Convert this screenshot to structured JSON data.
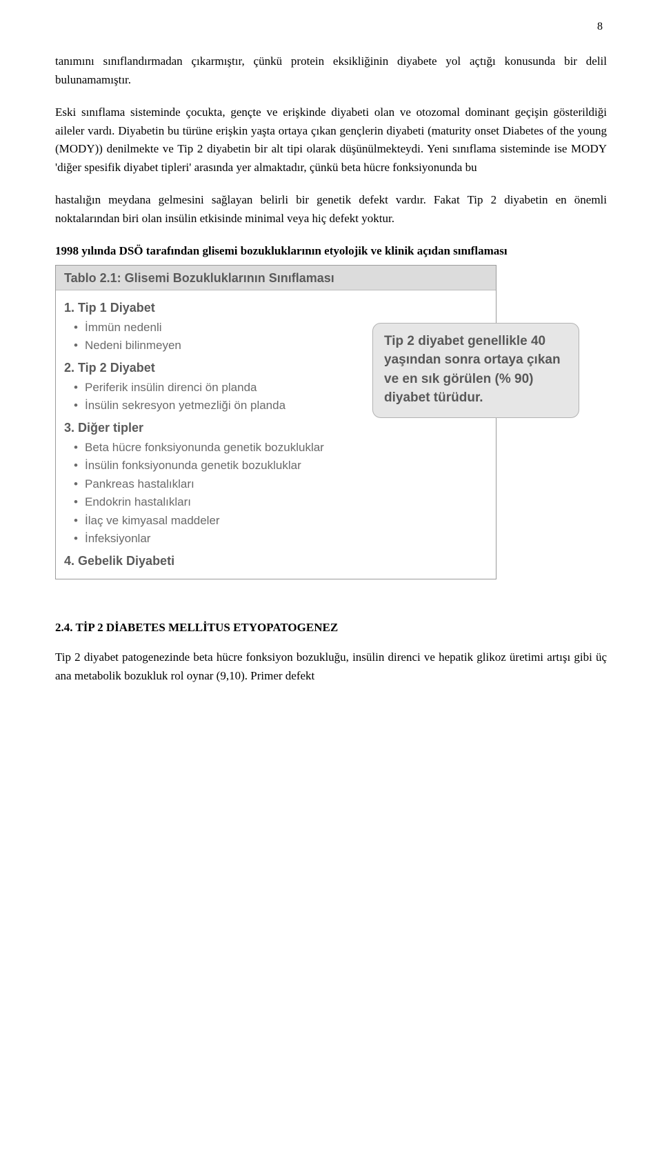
{
  "page_number": "8",
  "paragraphs": {
    "p1": "tanımını sınıflandırmadan çıkarmıştır, çünkü protein eksikliğinin diyabete yol açtığı konusunda bir delil bulunamamıştır.",
    "p2": "Eski sınıflama sisteminde çocukta, gençte ve erişkinde diyabeti olan ve otozomal dominant geçişin gösterildiği aileler vardı. Diyabetin bu türüne erişkin yaşta ortaya çıkan gençlerin diyabeti (maturity onset Diabetes of the young (MODY)) denilmekte ve Tip 2 diyabetin bir alt tipi olarak düşünülmekteydi. Yeni sınıflama sisteminde ise MODY 'diğer spesifik diyabet tipleri' arasında yer almaktadır, çünkü beta hücre fonksiyonunda bu",
    "p3": "hastalığın meydana gelmesini sağlayan belirli bir genetik defekt vardır. Fakat Tip 2 diyabetin en önemli noktalarından biri olan insülin etkisinde minimal veya hiç defekt yoktur.",
    "p4_bold": "1998 yılında DSÖ tarafından glisemi bozukluklarının etyolojik ve klinik açıdan sınıflaması"
  },
  "table": {
    "title": "Tablo 2.1: Glisemi Bozukluklarının Sınıflaması",
    "groups": [
      {
        "heading": "1. Tip 1 Diyabet",
        "items": [
          "İmmün nedenli",
          "Nedeni bilinmeyen"
        ]
      },
      {
        "heading": "2. Tip 2 Diyabet",
        "items": [
          "Periferik insülin direnci ön planda",
          "İnsülin sekresyon yetmezliği ön planda"
        ]
      },
      {
        "heading": "3. Diğer tipler",
        "items": [
          "Beta hücre fonksiyonunda genetik bozukluklar",
          "İnsülin fonksiyonunda genetik bozukluklar",
          "Pankreas hastalıkları",
          "Endokrin hastalıkları",
          "İlaç ve kimyasal maddeler",
          "İnfeksiyonlar"
        ]
      },
      {
        "heading": "4. Gebelik Diyabeti",
        "items": []
      }
    ]
  },
  "callout": "Tip 2 diyabet genellikle 40 yaşından sonra ortaya çıkan ve en sık görülen (% 90) diyabet türüdur.",
  "section": {
    "heading": "2.4. TİP 2 DİABETES MELLİTUS ETYOPATOGENEZ",
    "body": "Tip 2 diyabet patogenezinde beta hücre fonksiyon bozukluğu, insülin direnci ve hepatik glikoz üretimi artışı gibi üç ana metabolik bozukluk rol oynar (9,10). Primer defekt"
  }
}
